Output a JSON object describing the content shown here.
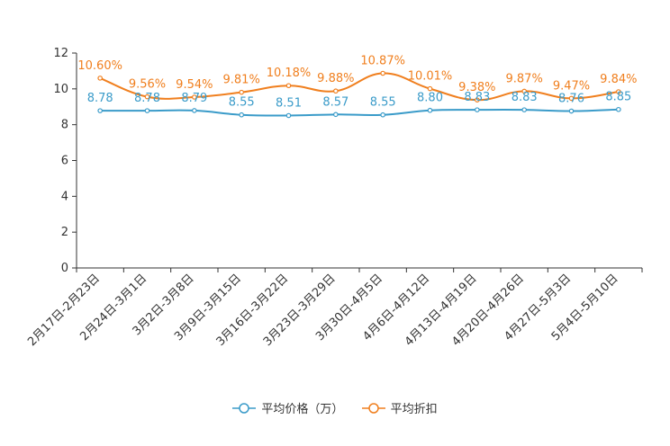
{
  "chart_data": {
    "type": "line",
    "title": "",
    "xlabel": "",
    "ylabel": "",
    "ylim": [
      0,
      12
    ],
    "yticks": [
      0,
      2,
      4,
      6,
      8,
      10,
      12
    ],
    "categories": [
      "2月17日-2月23日",
      "2月24日-3月1日",
      "3月2日-3月8日",
      "3月9日-3月15日",
      "3月16日-3月22日",
      "3月23日-3月29日",
      "3月30日-4月5日",
      "4月6日-4月12日",
      "4月13日-4月19日",
      "4月20日-4月26日",
      "4月27日-5月3日",
      "5月4日-5月10日"
    ],
    "series": [
      {
        "name": "平均价格（万）",
        "color": "#3a9bc9",
        "values": [
          8.78,
          8.78,
          8.79,
          8.55,
          8.51,
          8.57,
          8.55,
          8.8,
          8.83,
          8.83,
          8.76,
          8.85
        ],
        "labels": [
          "8.78",
          "8.78",
          "8.79",
          "8.55",
          "8.51",
          "8.57",
          "8.55",
          "8.80",
          "8.83",
          "8.83",
          "8.76",
          "8.85"
        ]
      },
      {
        "name": "平均折扣",
        "color": "#f07f1e",
        "values": [
          10.6,
          9.56,
          9.54,
          9.81,
          10.18,
          9.88,
          10.87,
          10.01,
          9.38,
          9.87,
          9.47,
          9.84
        ],
        "labels": [
          "10.60%",
          "9.56%",
          "9.54%",
          "9.81%",
          "10.18%",
          "9.88%",
          "10.87%",
          "10.01%",
          "9.38%",
          "9.87%",
          "9.47%",
          "9.84%"
        ]
      }
    ],
    "legend": "bottom"
  }
}
